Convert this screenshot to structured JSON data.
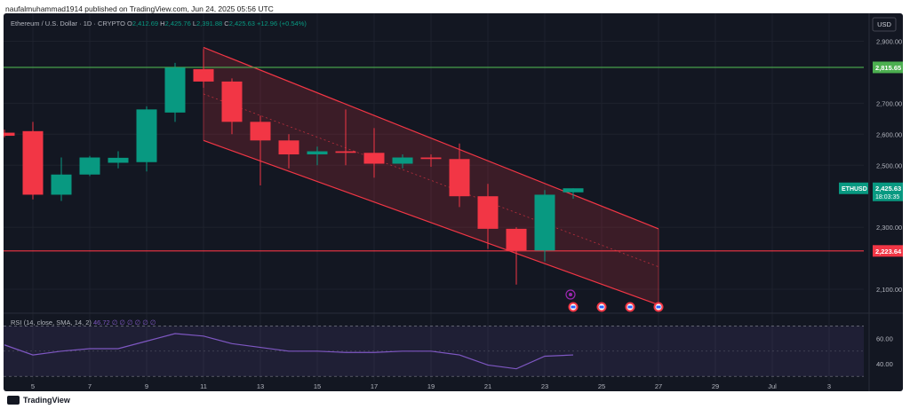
{
  "header": {
    "publisher_line": "naufalmuhammad1914 published on TradingView.com, Jun 24, 2025 05:56 UTC"
  },
  "footer": {
    "brand": "TradingView"
  },
  "chart_data": {
    "type": "candlestick",
    "symbol_line": {
      "name": "Ethereum / U.S. Dollar · 1D · CRYPTO",
      "o_label": "O",
      "o_value": "2,412.69",
      "h_label": "H",
      "h_value": "2,425.76",
      "l_label": "L",
      "l_value": "2,391.88",
      "c_label": "C",
      "c_value": "2,425.63",
      "change": "+12.96 (+0.54%)"
    },
    "currency": "USD",
    "ylim": [
      2040,
      2950
    ],
    "y_ticks": [
      "2,900.00",
      "2,700.00",
      "2,600.00",
      "2,500.00",
      "2,300.00",
      "2,100.00"
    ],
    "y_tick_values": [
      2900,
      2700,
      2600,
      2500,
      2300,
      2100
    ],
    "x_ticks": [
      "5",
      "7",
      "9",
      "11",
      "13",
      "15",
      "17",
      "19",
      "21",
      "23",
      "25",
      "27",
      "29",
      "Jul",
      "3"
    ],
    "candles": [
      {
        "date": "Jun 4",
        "o": 2605,
        "h": 2615,
        "l": 2590,
        "c": 2595
      },
      {
        "date": "Jun 5",
        "o": 2610,
        "h": 2640,
        "l": 2390,
        "c": 2405
      },
      {
        "date": "Jun 6",
        "o": 2405,
        "h": 2525,
        "l": 2385,
        "c": 2470
      },
      {
        "date": "Jun 7",
        "o": 2470,
        "h": 2530,
        "l": 2465,
        "c": 2525
      },
      {
        "date": "Jun 8",
        "o": 2508,
        "h": 2545,
        "l": 2490,
        "c": 2524
      },
      {
        "date": "Jun 9",
        "o": 2510,
        "h": 2690,
        "l": 2480,
        "c": 2680
      },
      {
        "date": "Jun 10",
        "o": 2670,
        "h": 2830,
        "l": 2640,
        "c": 2815
      },
      {
        "date": "Jun 11",
        "o": 2810,
        "h": 2875,
        "l": 2750,
        "c": 2770
      },
      {
        "date": "Jun 12",
        "o": 2770,
        "h": 2780,
        "l": 2600,
        "c": 2640
      },
      {
        "date": "Jun 13",
        "o": 2640,
        "h": 2660,
        "l": 2435,
        "c": 2580
      },
      {
        "date": "Jun 14",
        "o": 2580,
        "h": 2600,
        "l": 2490,
        "c": 2535
      },
      {
        "date": "Jun 15",
        "o": 2535,
        "h": 2560,
        "l": 2500,
        "c": 2545
      },
      {
        "date": "Jun 16",
        "o": 2545,
        "h": 2680,
        "l": 2500,
        "c": 2540
      },
      {
        "date": "Jun 17",
        "o": 2540,
        "h": 2620,
        "l": 2460,
        "c": 2505
      },
      {
        "date": "Jun 18",
        "o": 2505,
        "h": 2535,
        "l": 2490,
        "c": 2525
      },
      {
        "date": "Jun 19",
        "o": 2525,
        "h": 2535,
        "l": 2495,
        "c": 2520
      },
      {
        "date": "Jun 20",
        "o": 2520,
        "h": 2570,
        "l": 2365,
        "c": 2400
      },
      {
        "date": "Jun 21",
        "o": 2400,
        "h": 2440,
        "l": 2230,
        "c": 2295
      },
      {
        "date": "Jun 22",
        "o": 2295,
        "h": 2300,
        "l": 2115,
        "c": 2225
      },
      {
        "date": "Jun 23",
        "o": 2225,
        "h": 2420,
        "l": 2190,
        "c": 2405
      },
      {
        "date": "Jun 24",
        "o": 2412.69,
        "h": 2425.76,
        "l": 2391.88,
        "c": 2425.63
      }
    ],
    "horizontal_lines": [
      {
        "value": 2815.65,
        "label": "2,815.65",
        "color": "#4caf50"
      },
      {
        "value": 2223.64,
        "label": "2,223.64",
        "color": "#f23645"
      }
    ],
    "channel": {
      "upper": [
        {
          "date": "Jun 11",
          "value": 2880
        },
        {
          "date": "Jun 27",
          "value": 2295
        }
      ],
      "lower": [
        {
          "date": "Jun 11",
          "value": 2580
        },
        {
          "date": "Jun 27",
          "value": 2050
        }
      ],
      "color": "#f23645"
    },
    "last_price": {
      "symbol": "ETHUSD",
      "price": "2,425.63",
      "countdown": "18:03:35",
      "color": "#089981"
    },
    "event_markers": [
      "Jun 24",
      "Jun 25",
      "Jun 26",
      "Jun 27"
    ],
    "colors": {
      "up": "#089981",
      "down": "#f23645",
      "rsi": "#7e57c2"
    },
    "rsi": {
      "label": "RSI (14, close, SMA, 14, 2)",
      "value": "46.72",
      "placeholders": "∅ ∅ ∅ ∅ ∅ ∅",
      "y_ticks": [
        "60.00",
        "40.00"
      ],
      "y_tick_values": [
        60,
        40
      ],
      "ylim": [
        28,
        76
      ],
      "values": [
        55,
        47,
        50,
        52,
        52,
        58,
        64,
        62,
        56,
        53,
        50,
        50,
        49,
        49,
        50,
        50,
        47,
        39,
        36,
        46,
        47
      ]
    }
  }
}
